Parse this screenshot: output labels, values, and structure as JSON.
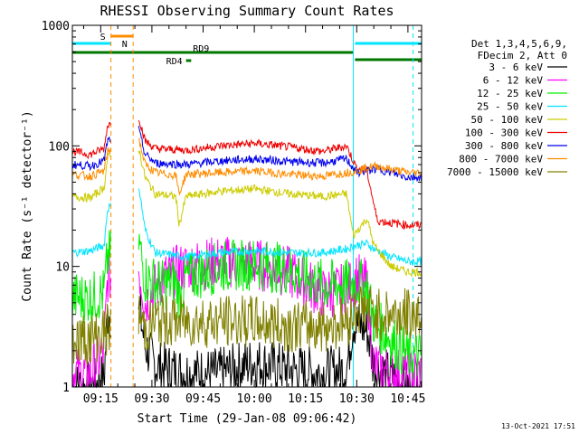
{
  "chart_data": {
    "type": "line",
    "title": "RHESSI Observing Summary Count Rates",
    "xlabel": "Start Time (29-Jan-08 09:06:42)",
    "ylabel": "Count Rate (s⁻¹ detector⁻¹)",
    "y_scale": "log",
    "ylim": [
      1,
      1000
    ],
    "xlim": [
      "09:06:42",
      "10:49:00"
    ],
    "x_ticks": [
      "09:15",
      "09:30",
      "09:45",
      "10:00",
      "10:15",
      "10:30",
      "10:45"
    ],
    "y_ticks": [
      "1",
      "10",
      "100",
      "1000"
    ],
    "legend": {
      "placement": "right",
      "header": [
        "Det 1,3,4,5,6,9,",
        "FDecim 2, Att 0"
      ]
    },
    "footer": "13-Oct-2021 17:51",
    "flags": [
      {
        "label": "S",
        "color": "#ff8c00",
        "start": "09:18:00",
        "end": "09:24:30"
      },
      {
        "label": "N",
        "color": "#00e5ff",
        "start": "09:06:42",
        "end": "09:18:00"
      },
      {
        "label": "N",
        "color": "#00e5ff",
        "start": "10:29:30",
        "end": "10:49:00"
      },
      {
        "label": "RD9",
        "color": "#007700",
        "start": "09:06:42",
        "end": "10:29:00"
      },
      {
        "label": "RD9",
        "color": "#007700",
        "start": "10:29:30",
        "end": "10:49:00"
      },
      {
        "label": "RD4",
        "color": "#007700",
        "start": "09:40:00",
        "end": "09:41:30"
      }
    ],
    "markers": [
      {
        "time": "09:18:00",
        "color": "#ff8c00",
        "style": "dashed"
      },
      {
        "time": "09:24:30",
        "color": "#ff8c00",
        "style": "dashed"
      },
      {
        "time": "10:29:00",
        "color": "#00e5ff",
        "style": "solid"
      },
      {
        "time": "10:46:30",
        "color": "#00e5ff",
        "style": "dashed"
      }
    ],
    "gap": {
      "start": "09:18:00",
      "end": "09:26:00"
    },
    "series": [
      {
        "name": "3 - 6 keV",
        "color": "#000000",
        "x": [
          "09:06:42",
          "09:12",
          "09:16",
          "09:17",
          "09:26",
          "09:28",
          "09:31",
          "09:40",
          "09:50",
          "10:00",
          "10:10",
          "10:20",
          "10:27",
          "10:29",
          "10:33",
          "10:35",
          "10:40",
          "10:45"
        ],
        "y": [
          1,
          1,
          1.2,
          4,
          5,
          2.2,
          1.5,
          1.3,
          1.3,
          1.6,
          1.4,
          1.3,
          1.4,
          3.5,
          3,
          1.5,
          1.2,
          1
        ]
      },
      {
        "name": "6 - 12 keV",
        "color": "#ff00ff",
        "x": [
          "09:06:42",
          "09:12",
          "09:16",
          "09:17",
          "09:26",
          "09:28",
          "09:33",
          "09:40",
          "09:50",
          "10:00",
          "10:10",
          "10:20",
          "10:27",
          "10:30",
          "10:33",
          "10:35",
          "10:40",
          "10:45"
        ],
        "y": [
          1.3,
          1.3,
          2,
          8,
          10,
          5,
          8,
          10,
          11,
          10.5,
          9,
          6,
          6.5,
          8,
          7,
          1.5,
          1.3,
          1.3
        ]
      },
      {
        "name": "12 - 25 keV",
        "color": "#00ee00",
        "x": [
          "09:06:42",
          "09:12",
          "09:16",
          "09:17",
          "09:26",
          "09:28",
          "09:33",
          "09:37",
          "09:38",
          "09:40",
          "09:50",
          "10:00",
          "10:10",
          "10:20",
          "10:27",
          "10:30",
          "10:33",
          "10:35",
          "10:40",
          "10:45"
        ],
        "y": [
          5.5,
          5.5,
          6,
          12,
          17,
          8,
          7,
          7.5,
          5.5,
          8,
          10,
          10.5,
          9.5,
          7,
          7,
          7.5,
          6.5,
          3.5,
          2.5,
          1.8
        ]
      },
      {
        "name": "25 - 50 keV",
        "color": "#00e5ff",
        "x": [
          "09:06:42",
          "09:12",
          "09:16",
          "09:17",
          "09:26",
          "09:28",
          "09:31",
          "09:40",
          "09:50",
          "10:00",
          "10:10",
          "10:20",
          "10:27",
          "10:30",
          "10:33",
          "10:35",
          "10:40",
          "10:45"
        ],
        "y": [
          13,
          13.5,
          15,
          30,
          50,
          20,
          13,
          12,
          13,
          13.5,
          13,
          13,
          14,
          15,
          15.5,
          14,
          12,
          11
        ]
      },
      {
        "name": "50 - 100 keV",
        "color": "#cccc00",
        "x": [
          "09:06:42",
          "09:12",
          "09:16",
          "09:17",
          "09:26",
          "09:28",
          "09:31",
          "09:37",
          "09:38",
          "09:40",
          "09:50",
          "10:00",
          "10:10",
          "10:20",
          "10:27",
          "10:29",
          "10:33",
          "10:35",
          "10:40",
          "10:45"
        ],
        "y": [
          38,
          37,
          45,
          80,
          100,
          55,
          40,
          38,
          22,
          38,
          42,
          44,
          40,
          38,
          40,
          18,
          25,
          15,
          10,
          9
        ]
      },
      {
        "name": "100 - 300 keV",
        "color": "#ee0000",
        "x": [
          "09:06:42",
          "09:12",
          "09:16",
          "09:17",
          "09:26",
          "09:28",
          "09:31",
          "09:40",
          "09:50",
          "10:00",
          "10:10",
          "10:20",
          "10:27",
          "10:30",
          "10:33",
          "10:36",
          "10:40",
          "10:45"
        ],
        "y": [
          90,
          85,
          95,
          150,
          180,
          110,
          95,
          92,
          100,
          105,
          98,
          90,
          100,
          65,
          62,
          24,
          23,
          22
        ]
      },
      {
        "name": "300 - 800 keV",
        "color": "#0000ee",
        "x": [
          "09:06:42",
          "09:12",
          "09:16",
          "09:17",
          "09:26",
          "09:28",
          "09:31",
          "09:40",
          "09:50",
          "10:00",
          "10:10",
          "10:20",
          "10:27",
          "10:30",
          "10:33",
          "10:36",
          "10:40",
          "10:45"
        ],
        "y": [
          70,
          68,
          75,
          110,
          140,
          85,
          72,
          70,
          75,
          78,
          74,
          72,
          78,
          60,
          62,
          65,
          60,
          55
        ]
      },
      {
        "name": "800 - 7000 keV",
        "color": "#ff8c00",
        "x": [
          "09:06:42",
          "09:12",
          "09:16",
          "09:17",
          "09:26",
          "09:28",
          "09:31",
          "09:37",
          "09:38",
          "09:40",
          "09:50",
          "10:00",
          "10:10",
          "10:20",
          "10:27",
          "10:30",
          "10:33",
          "10:36",
          "10:40",
          "10:45"
        ],
        "y": [
          58,
          56,
          62,
          90,
          120,
          70,
          60,
          57,
          40,
          58,
          60,
          62,
          58,
          56,
          60,
          62,
          66,
          68,
          64,
          60
        ]
      },
      {
        "name": "7000 - 15000 keV",
        "color": "#808000",
        "x": [
          "09:06:42",
          "09:12",
          "09:16",
          "09:17",
          "09:26",
          "09:28",
          "09:31",
          "09:40",
          "09:50",
          "10:00",
          "10:10",
          "10:20",
          "10:27",
          "10:30",
          "10:33",
          "10:36",
          "10:40",
          "10:45"
        ],
        "y": [
          2.5,
          2.5,
          2.8,
          3,
          4,
          3,
          3.5,
          3.5,
          3.5,
          3.5,
          3.2,
          3.2,
          3.5,
          4.5,
          4.5,
          4,
          4,
          4
        ]
      }
    ]
  }
}
